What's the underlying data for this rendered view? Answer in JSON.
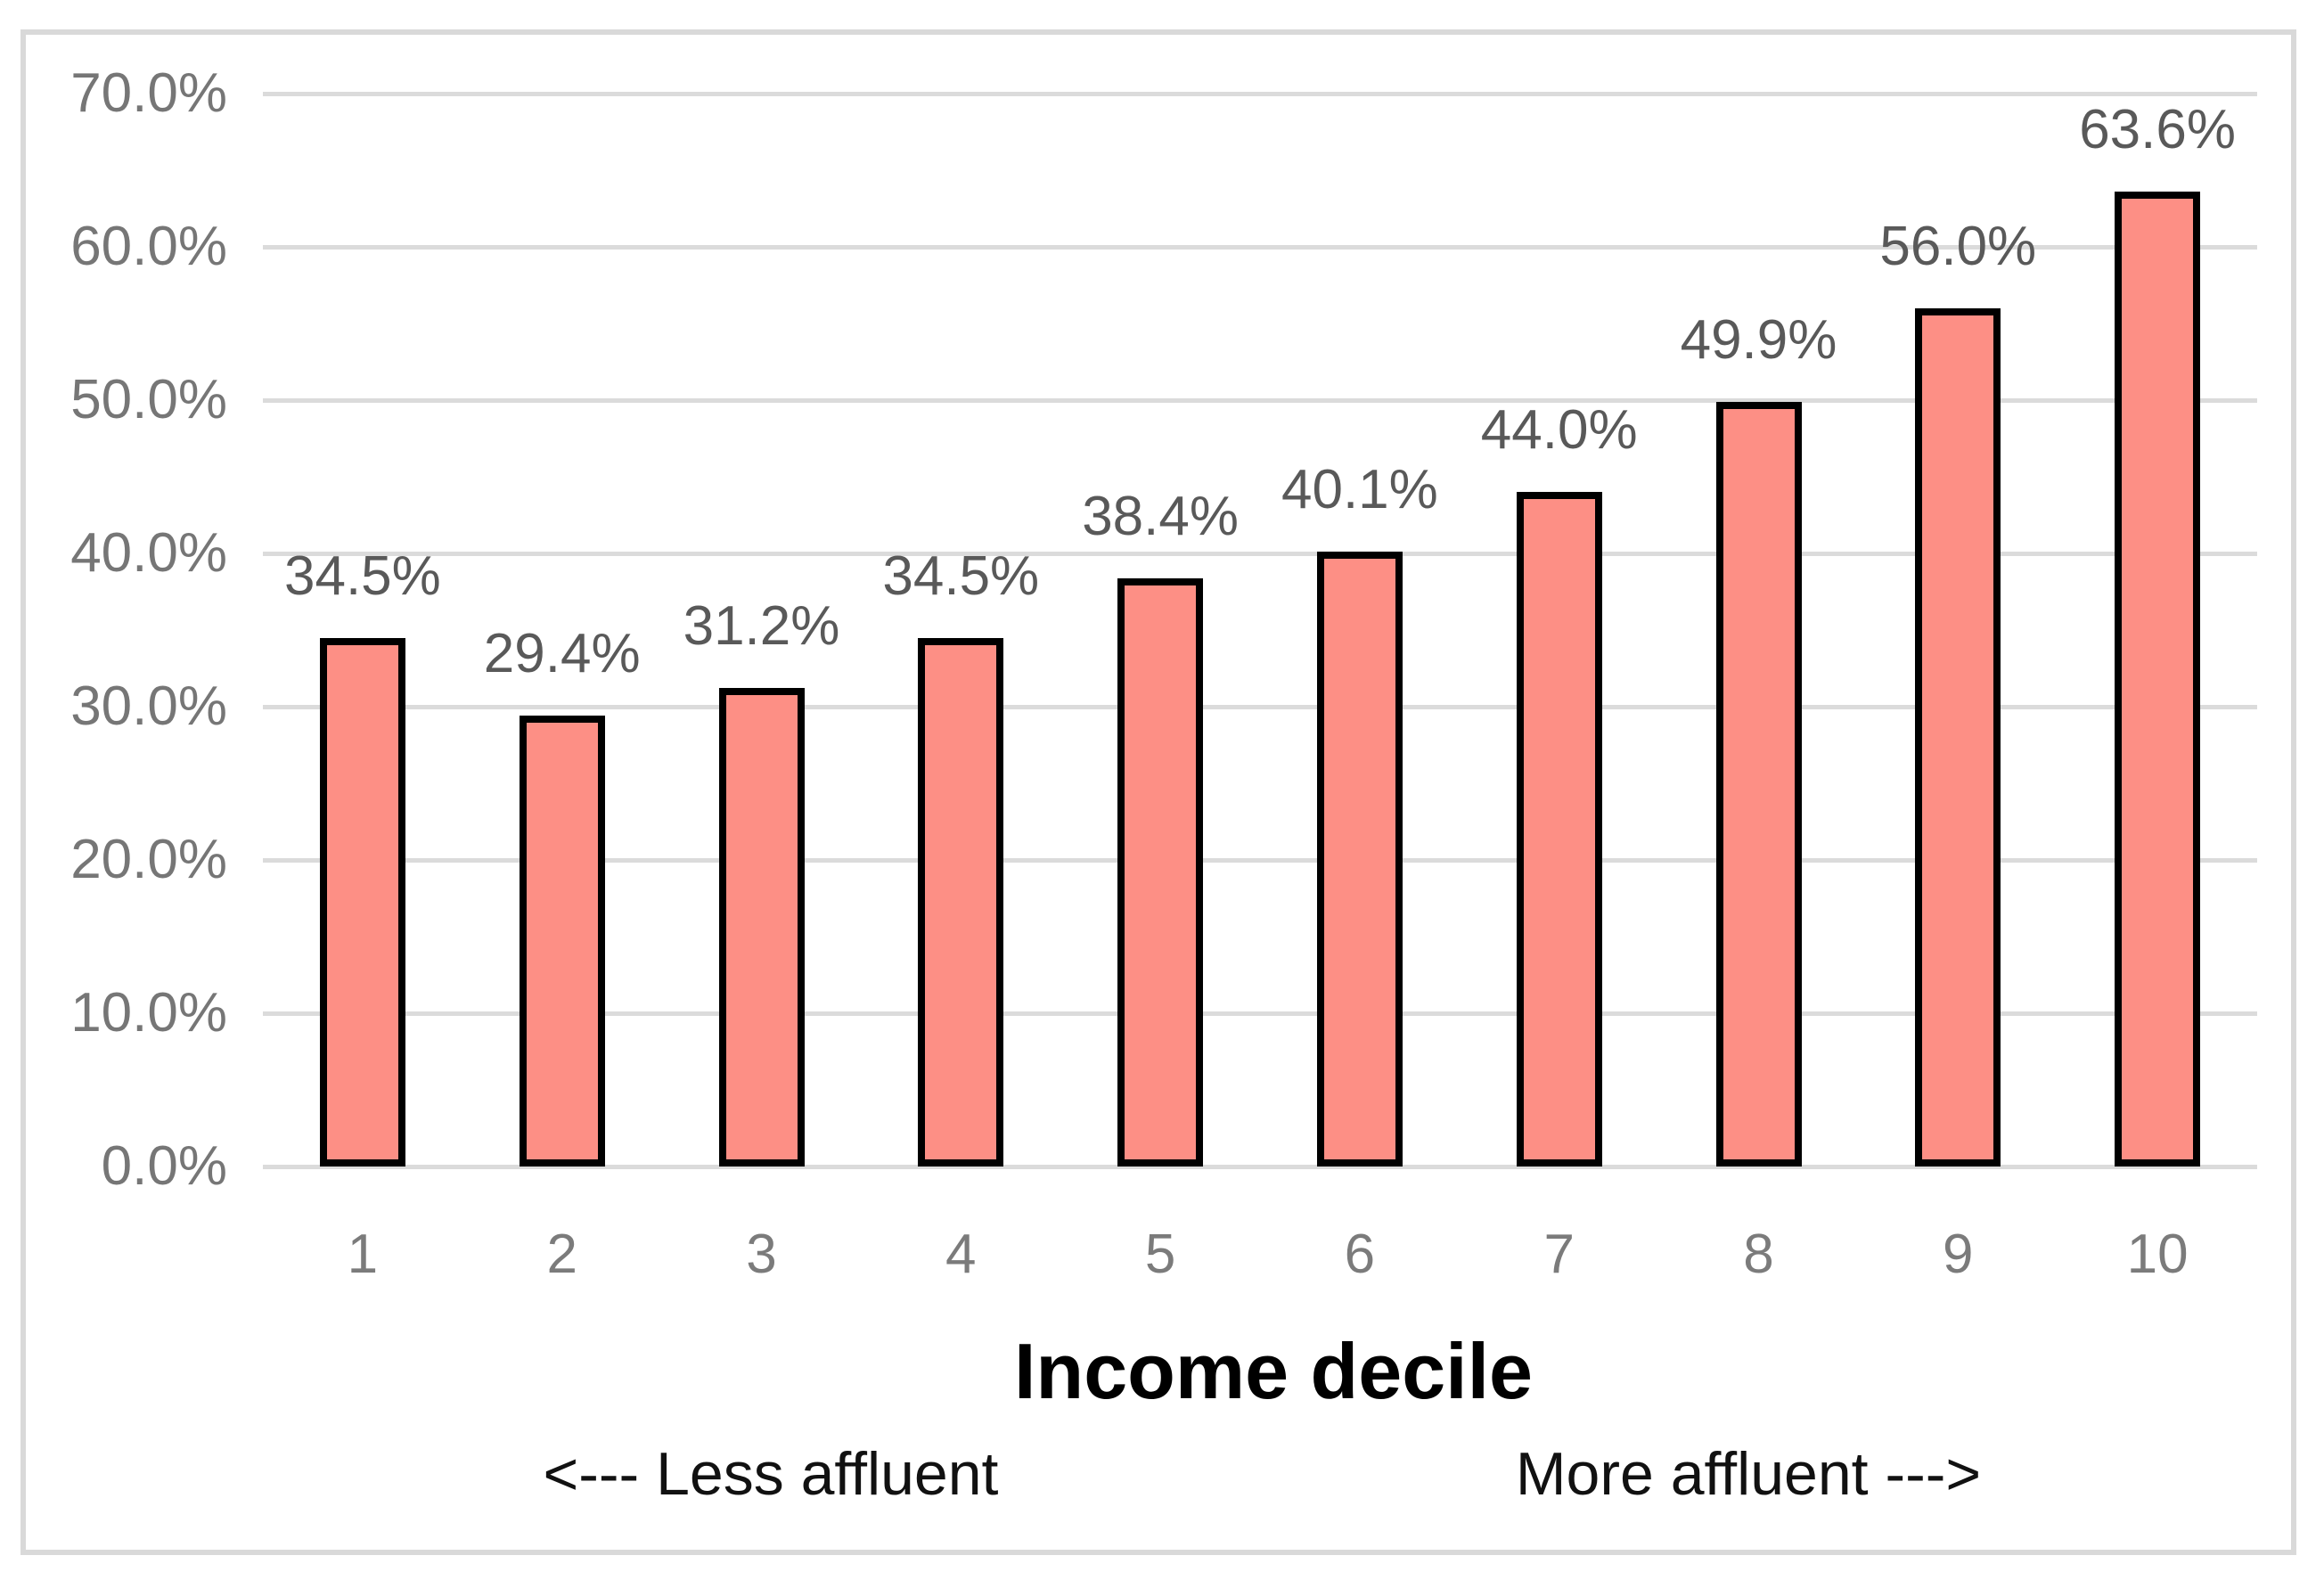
{
  "chart_data": {
    "type": "bar",
    "categories": [
      "1",
      "2",
      "3",
      "4",
      "5",
      "6",
      "7",
      "8",
      "9",
      "10"
    ],
    "values": [
      34.5,
      29.4,
      31.2,
      34.5,
      38.4,
      40.1,
      44.0,
      49.9,
      56.0,
      63.6
    ],
    "data_labels": [
      "34.5%",
      "29.4%",
      "31.2%",
      "34.5%",
      "38.4%",
      "40.1%",
      "44.0%",
      "49.9%",
      "56.0%",
      "63.6%"
    ],
    "xlabel": "Income decile",
    "ylabel": "",
    "ylim": [
      0,
      70
    ],
    "y_tick_step": 10,
    "y_ticks": [
      "0.0%",
      "10.0%",
      "20.0%",
      "30.0%",
      "40.0%",
      "50.0%",
      "60.0%",
      "70.0%"
    ],
    "grid": true,
    "legend": "none",
    "annotations": {
      "less_affluent": "<--- Less affluent",
      "more_affluent": "More affluent --->"
    },
    "colors": {
      "bar_fill": "#fd8f85",
      "bar_border": "#000000",
      "gridline": "#dbdbdb",
      "chart_frame_border": "#d9d9d9",
      "y_tick_text": "#767676",
      "x_tick_text": "#7b7b7b",
      "data_label_text": "#595959",
      "axis_title_text": "#000000",
      "annotation_text": "#111111"
    }
  }
}
